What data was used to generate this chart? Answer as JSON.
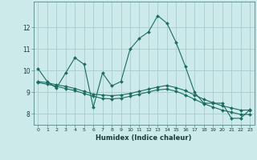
{
  "title": "",
  "xlabel": "Humidex (Indice chaleur)",
  "bg_color": "#cceaea",
  "grid_color": "#aacccc",
  "line_color": "#1a6b60",
  "x_values": [
    0,
    1,
    2,
    3,
    4,
    5,
    6,
    7,
    8,
    9,
    10,
    11,
    12,
    13,
    14,
    15,
    16,
    17,
    18,
    19,
    20,
    21,
    22,
    23
  ],
  "series1": [
    10.1,
    9.5,
    9.2,
    9.9,
    10.6,
    10.3,
    8.3,
    9.9,
    9.3,
    9.5,
    11.0,
    11.5,
    11.8,
    12.55,
    12.2,
    11.3,
    10.2,
    9.0,
    8.5,
    8.5,
    8.5,
    7.8,
    7.8,
    8.2
  ],
  "series2": [
    9.5,
    9.45,
    9.35,
    9.28,
    9.18,
    9.05,
    8.92,
    8.88,
    8.85,
    8.88,
    8.95,
    9.05,
    9.15,
    9.25,
    9.32,
    9.22,
    9.08,
    8.88,
    8.68,
    8.52,
    8.38,
    8.28,
    8.18,
    8.18
  ],
  "series3": [
    9.45,
    9.38,
    9.28,
    9.18,
    9.08,
    8.95,
    8.82,
    8.72,
    8.7,
    8.73,
    8.82,
    8.92,
    9.02,
    9.12,
    9.15,
    9.05,
    8.88,
    8.68,
    8.48,
    8.32,
    8.18,
    8.08,
    7.98,
    7.98
  ],
  "ylim": [
    7.5,
    13.2
  ],
  "yticks": [
    8,
    9,
    10,
    11,
    12
  ],
  "xlim": [
    -0.5,
    23.5
  ]
}
